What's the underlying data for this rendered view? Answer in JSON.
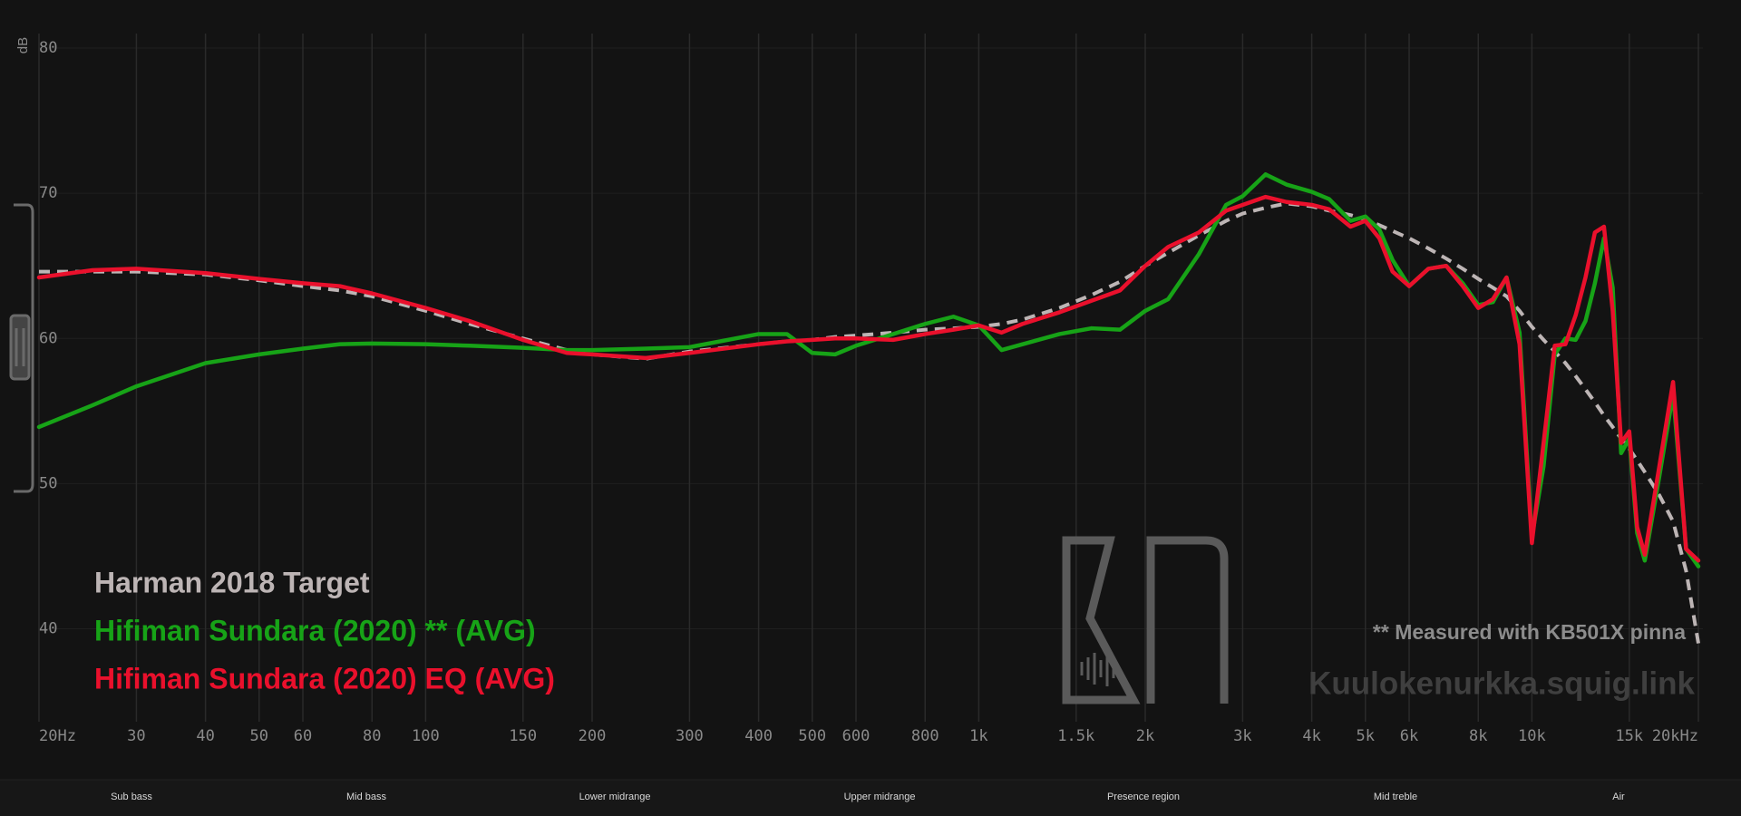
{
  "chart_data": {
    "type": "line",
    "y_label": "dB",
    "xscale": "log",
    "grid": true,
    "x": [
      20,
      25,
      30,
      40,
      50,
      60,
      70,
      80,
      100,
      120,
      150,
      180,
      200,
      250,
      300,
      400,
      450,
      500,
      550,
      600,
      700,
      800,
      900,
      1000,
      1100,
      1200,
      1400,
      1600,
      1800,
      2000,
      2200,
      2500,
      2800,
      3000,
      3300,
      3600,
      4000,
      4300,
      4700,
      5000,
      5300,
      5600,
      6000,
      6500,
      7000,
      7500,
      8000,
      8500,
      9000,
      9500,
      10000,
      10500,
      11000,
      11500,
      12000,
      12500,
      13000,
      13500,
      14000,
      14500,
      15000,
      15500,
      16000,
      17000,
      18000,
      19000,
      20000
    ],
    "xlim": [
      20,
      20000
    ],
    "xticks": [
      {
        "value": 20,
        "label": "20Hz"
      },
      30,
      40,
      50,
      60,
      80,
      100,
      150,
      200,
      300,
      400,
      500,
      600,
      800,
      {
        "value": 1000,
        "label": "1k"
      },
      {
        "value": 1500,
        "label": "1.5k"
      },
      {
        "value": 2000,
        "label": "2k"
      },
      {
        "value": 3000,
        "label": "3k"
      },
      {
        "value": 4000,
        "label": "4k"
      },
      {
        "value": 5000,
        "label": "5k"
      },
      {
        "value": 6000,
        "label": "6k"
      },
      {
        "value": 8000,
        "label": "8k"
      },
      {
        "value": 10000,
        "label": "10k"
      },
      {
        "value": 15000,
        "label": "15k"
      },
      {
        "value": 20000,
        "label": "20kHz"
      }
    ],
    "ylim": [
      33.6,
      81
    ],
    "yticks": [
      40,
      50,
      60,
      70,
      80
    ],
    "series": [
      {
        "name": "Harman 2018 Target",
        "color": "#bdb5b5",
        "style": "dashed",
        "values": [
          64.6,
          64.6,
          64.6,
          64.4,
          64.0,
          63.6,
          63.3,
          62.9,
          61.9,
          61.0,
          60.0,
          59.2,
          58.9,
          58.6,
          59.1,
          59.6,
          59.8,
          59.9,
          60.1,
          60.2,
          60.4,
          60.6,
          60.7,
          60.8,
          61.0,
          61.3,
          62.1,
          63.0,
          63.9,
          65.0,
          65.9,
          67.1,
          68.1,
          68.6,
          69.0,
          69.3,
          69.1,
          68.8,
          68.5,
          68.2,
          67.8,
          67.4,
          66.9,
          66.2,
          65.5,
          64.8,
          64.1,
          63.5,
          62.9,
          61.9,
          60.8,
          59.9,
          59.1,
          58.3,
          57.4,
          56.5,
          55.6,
          54.7,
          53.9,
          53.1,
          52.4,
          51.6,
          50.8,
          49.2,
          47.4,
          44.0,
          39.0
        ]
      },
      {
        "name": "Hifiman Sundara (2020) ** (AVG)",
        "color": "#17a317",
        "style": "solid",
        "values": [
          53.9,
          55.4,
          56.7,
          58.3,
          58.9,
          59.3,
          59.6,
          59.65,
          59.6,
          59.5,
          59.35,
          59.2,
          59.2,
          59.3,
          59.4,
          60.3,
          60.3,
          59.0,
          58.9,
          59.5,
          60.3,
          61.0,
          61.5,
          60.9,
          59.2,
          59.6,
          60.3,
          60.7,
          60.6,
          61.9,
          62.7,
          65.8,
          69.2,
          69.8,
          71.3,
          70.6,
          70.1,
          69.6,
          68.1,
          68.4,
          67.5,
          65.4,
          63.6,
          64.8,
          65.0,
          63.8,
          62.3,
          62.5,
          64.2,
          60.4,
          46.3,
          51.2,
          58.9,
          60.0,
          59.9,
          61.2,
          63.8,
          66.9,
          63.5,
          52.1,
          53.1,
          46.6,
          44.7,
          50.5,
          56.2,
          45.5,
          44.3
        ]
      },
      {
        "name": "Hifiman Sundara (2020) EQ (AVG)",
        "color": "#ea102c",
        "style": "solid",
        "values": [
          64.2,
          64.7,
          64.8,
          64.5,
          64.1,
          63.8,
          63.6,
          63.1,
          62.1,
          61.2,
          59.9,
          59.0,
          58.9,
          58.65,
          59.0,
          59.6,
          59.8,
          59.9,
          60.0,
          60.0,
          59.9,
          60.3,
          60.6,
          60.9,
          60.4,
          61.0,
          61.8,
          62.6,
          63.3,
          65.0,
          66.3,
          67.3,
          68.8,
          69.2,
          69.75,
          69.4,
          69.2,
          68.9,
          67.7,
          68.1,
          66.9,
          64.6,
          63.6,
          64.8,
          65.0,
          63.6,
          62.1,
          62.7,
          64.2,
          59.6,
          45.9,
          52.8,
          59.5,
          59.6,
          61.6,
          64.2,
          67.3,
          67.7,
          61.9,
          52.8,
          53.6,
          47.0,
          45.1,
          51.2,
          57.0,
          45.5,
          44.7
        ]
      }
    ],
    "note": "** Measured with KB501X pinna",
    "watermark": "Kuulokenurkka.squig.link",
    "bands": [
      "Sub bass",
      "Mid bass",
      "Lower midrange",
      "Upper midrange",
      "Presence region",
      "Mid treble",
      "Air"
    ]
  }
}
